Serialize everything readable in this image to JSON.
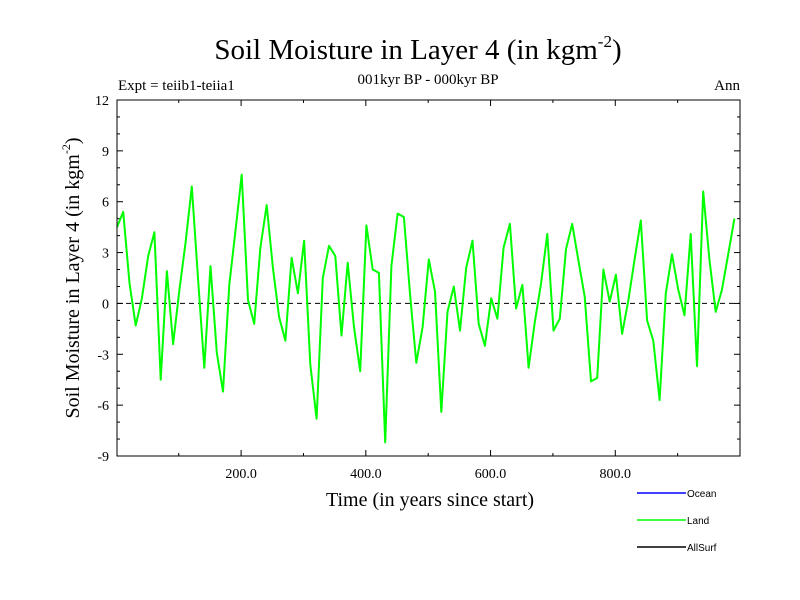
{
  "chart_data": {
    "type": "line",
    "title": "Soil Moisture in Layer 4 (in kgm",
    "title_sup": "-2",
    "title_tail": ")",
    "subtitle": "001kyr BP - 000kyr BP",
    "left_note": "Expt = teiib1-teiia1",
    "right_note": "Ann",
    "xlabel": "Time (in years since start)",
    "ylabel": "Soil Moisture in Layer 4 (in kgm",
    "ylabel_sup": "-2",
    "ylabel_tail": ")",
    "xlim": [
      1,
      1000
    ],
    "ylim": [
      -9,
      12
    ],
    "x_ticks": [
      {
        "value": 200,
        "label": "200.0"
      },
      {
        "value": 400,
        "label": "400.0"
      },
      {
        "value": 600,
        "label": "600.0"
      },
      {
        "value": 800,
        "label": "800.0"
      }
    ],
    "y_ticks": [
      {
        "value": -9,
        "label": "-9"
      },
      {
        "value": -6,
        "label": "-6"
      },
      {
        "value": -3,
        "label": "-3"
      },
      {
        "value": 0,
        "label": "0"
      },
      {
        "value": 3,
        "label": "3"
      },
      {
        "value": 6,
        "label": "6"
      },
      {
        "value": 9,
        "label": "9"
      },
      {
        "value": 12,
        "label": "12"
      }
    ],
    "zero_line": true,
    "legend_placement": "bottom-right",
    "series": [
      {
        "name": "Ocean",
        "color": "#0000ff",
        "values": []
      },
      {
        "name": "Land",
        "color": "#00ff00",
        "x_start": 1,
        "x_step": 10,
        "values": [
          4.5,
          5.4,
          1.2,
          -1.3,
          0.3,
          2.8,
          4.2,
          -4.5,
          1.9,
          -2.4,
          0.8,
          3.6,
          6.9,
          1.4,
          -3.8,
          2.2,
          -2.9,
          -5.2,
          1.1,
          4.3,
          7.6,
          0.2,
          -1.2,
          3.3,
          5.8,
          2.1,
          -0.8,
          -2.2,
          2.7,
          0.6,
          3.7,
          -3.6,
          -6.8,
          1.5,
          3.4,
          2.8,
          -1.9,
          2.4,
          -1.4,
          -4.0,
          4.6,
          2.0,
          1.8,
          -8.2,
          2.2,
          5.3,
          5.1,
          0.5,
          -3.5,
          -1.4,
          2.6,
          0.7,
          -6.4,
          -0.5,
          1.0,
          -1.6,
          2.1,
          3.7,
          -1.2,
          -2.5,
          0.3,
          -0.9,
          3.3,
          4.7,
          -0.3,
          1.1,
          -3.8,
          -1.1,
          1.2,
          4.1,
          -1.6,
          -0.9,
          3.2,
          4.7,
          2.5,
          0.4,
          -4.6,
          -4.4,
          2.0,
          0.1,
          1.7,
          -1.8,
          0.2,
          2.6,
          4.9,
          -1.0,
          -2.2,
          -5.7,
          0.6,
          2.9,
          0.8,
          -0.7,
          4.1,
          -3.7,
          6.6,
          2.6,
          -0.5,
          0.8,
          2.9,
          5.0
        ]
      },
      {
        "name": "AllSurf",
        "color": "#000000",
        "values": []
      }
    ]
  }
}
